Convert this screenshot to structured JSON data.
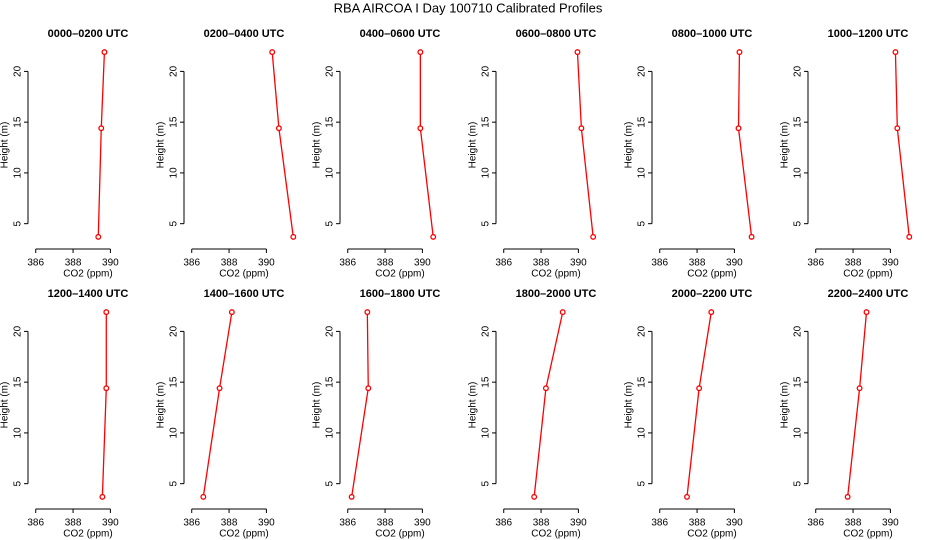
{
  "title": "RBA AIRCOA I  Day 100710  Calibrated Profiles",
  "chart_data": [
    {
      "type": "line",
      "title": "0000–0200 UTC",
      "xlabel": "CO2 (ppm)",
      "ylabel": "Height (m)",
      "x": [
        389.35,
        389.51,
        389.68
      ],
      "values": [
        3.7,
        14.4,
        21.9
      ],
      "color": "#ff0000",
      "xlim": [
        385.8,
        391.8
      ],
      "xticks": [
        386,
        388,
        390
      ],
      "ylim": [
        2.9,
        22.6
      ],
      "yticks": [
        5,
        10,
        15,
        20
      ]
    },
    {
      "type": "line",
      "title": "0200–0400 UTC",
      "xlabel": "CO2 (ppm)",
      "ylabel": "Height (m)",
      "x": [
        391.44,
        390.67,
        390.31
      ],
      "values": [
        3.7,
        14.4,
        21.9
      ],
      "color": "#ff0000",
      "xlim": [
        385.8,
        391.8
      ],
      "xticks": [
        386,
        388,
        390
      ],
      "ylim": [
        2.9,
        22.6
      ],
      "yticks": [
        5,
        10,
        15,
        20
      ]
    },
    {
      "type": "line",
      "title": "0400–0600 UTC",
      "xlabel": "CO2 (ppm)",
      "ylabel": "Height (m)",
      "x": [
        390.58,
        389.89,
        389.89
      ],
      "values": [
        3.7,
        14.4,
        21.9
      ],
      "color": "#ff0000",
      "xlim": [
        385.8,
        391.8
      ],
      "xticks": [
        386,
        388,
        390
      ],
      "ylim": [
        2.9,
        22.6
      ],
      "yticks": [
        5,
        10,
        15,
        20
      ]
    },
    {
      "type": "line",
      "title": "0600–0800 UTC",
      "xlabel": "CO2 (ppm)",
      "ylabel": "Height (m)",
      "x": [
        390.79,
        390.16,
        389.95
      ],
      "values": [
        3.7,
        14.4,
        21.9
      ],
      "color": "#ff0000",
      "xlim": [
        385.8,
        391.8
      ],
      "xticks": [
        386,
        388,
        390
      ],
      "ylim": [
        2.9,
        22.6
      ],
      "yticks": [
        5,
        10,
        15,
        20
      ]
    },
    {
      "type": "line",
      "title": "0800–1000 UTC",
      "xlabel": "CO2 (ppm)",
      "ylabel": "Height (m)",
      "x": [
        390.92,
        390.22,
        390.27
      ],
      "values": [
        3.7,
        14.4,
        21.9
      ],
      "color": "#ff0000",
      "xlim": [
        385.8,
        391.8
      ],
      "xticks": [
        386,
        388,
        390
      ],
      "ylim": [
        2.9,
        22.6
      ],
      "yticks": [
        5,
        10,
        15,
        20
      ]
    },
    {
      "type": "line",
      "title": "1000–1200 UTC",
      "xlabel": "CO2 (ppm)",
      "ylabel": "Height (m)",
      "x": [
        391.01,
        390.37,
        390.27
      ],
      "values": [
        3.7,
        14.4,
        21.9
      ],
      "color": "#ff0000",
      "xlim": [
        385.8,
        391.8
      ],
      "xticks": [
        386,
        388,
        390
      ],
      "ylim": [
        2.9,
        22.6
      ],
      "yticks": [
        5,
        10,
        15,
        20
      ]
    },
    {
      "type": "line",
      "title": "1200–1400 UTC",
      "xlabel": "CO2 (ppm)",
      "ylabel": "Height (m)",
      "x": [
        389.57,
        389.78,
        389.78
      ],
      "values": [
        3.7,
        14.4,
        21.9
      ],
      "color": "#ff0000",
      "xlim": [
        385.8,
        391.8
      ],
      "xticks": [
        386,
        388,
        390
      ],
      "ylim": [
        2.9,
        22.6
      ],
      "yticks": [
        5,
        10,
        15,
        20
      ]
    },
    {
      "type": "line",
      "title": "1400–1600 UTC",
      "xlabel": "CO2 (ppm)",
      "ylabel": "Height (m)",
      "x": [
        386.62,
        387.49,
        388.15
      ],
      "values": [
        3.7,
        14.4,
        21.9
      ],
      "color": "#ff0000",
      "xlim": [
        385.8,
        391.8
      ],
      "xticks": [
        386,
        388,
        390
      ],
      "ylim": [
        2.9,
        22.6
      ],
      "yticks": [
        5,
        10,
        15,
        20
      ]
    },
    {
      "type": "line",
      "title": "1600–1800 UTC",
      "xlabel": "CO2 (ppm)",
      "ylabel": "Height (m)",
      "x": [
        386.21,
        387.1,
        387.05
      ],
      "values": [
        3.7,
        14.4,
        21.9
      ],
      "color": "#ff0000",
      "xlim": [
        385.8,
        391.8
      ],
      "xticks": [
        386,
        388,
        390
      ],
      "ylim": [
        2.9,
        22.6
      ],
      "yticks": [
        5,
        10,
        15,
        20
      ]
    },
    {
      "type": "line",
      "title": "1800–2000 UTC",
      "xlabel": "CO2 (ppm)",
      "ylabel": "Height (m)",
      "x": [
        387.63,
        388.26,
        389.16
      ],
      "values": [
        3.7,
        14.4,
        21.9
      ],
      "color": "#ff0000",
      "xlim": [
        385.8,
        391.8
      ],
      "xticks": [
        386,
        388,
        390
      ],
      "ylim": [
        2.9,
        22.6
      ],
      "yticks": [
        5,
        10,
        15,
        20
      ]
    },
    {
      "type": "line",
      "title": "2000–2200 UTC",
      "xlabel": "CO2 (ppm)",
      "ylabel": "Height (m)",
      "x": [
        387.46,
        388.11,
        388.76
      ],
      "values": [
        3.7,
        14.4,
        21.9
      ],
      "color": "#ff0000",
      "xlim": [
        385.8,
        391.8
      ],
      "xticks": [
        386,
        388,
        390
      ],
      "ylim": [
        2.9,
        22.6
      ],
      "yticks": [
        5,
        10,
        15,
        20
      ]
    },
    {
      "type": "line",
      "title": "2200–2400 UTC",
      "xlabel": "CO2 (ppm)",
      "ylabel": "Height (m)",
      "x": [
        387.71,
        388.35,
        388.72
      ],
      "values": [
        3.7,
        14.4,
        21.9
      ],
      "color": "#ff0000",
      "xlim": [
        385.8,
        391.8
      ],
      "xticks": [
        386,
        388,
        390
      ],
      "ylim": [
        2.9,
        22.6
      ],
      "yticks": [
        5,
        10,
        15,
        20
      ]
    }
  ]
}
